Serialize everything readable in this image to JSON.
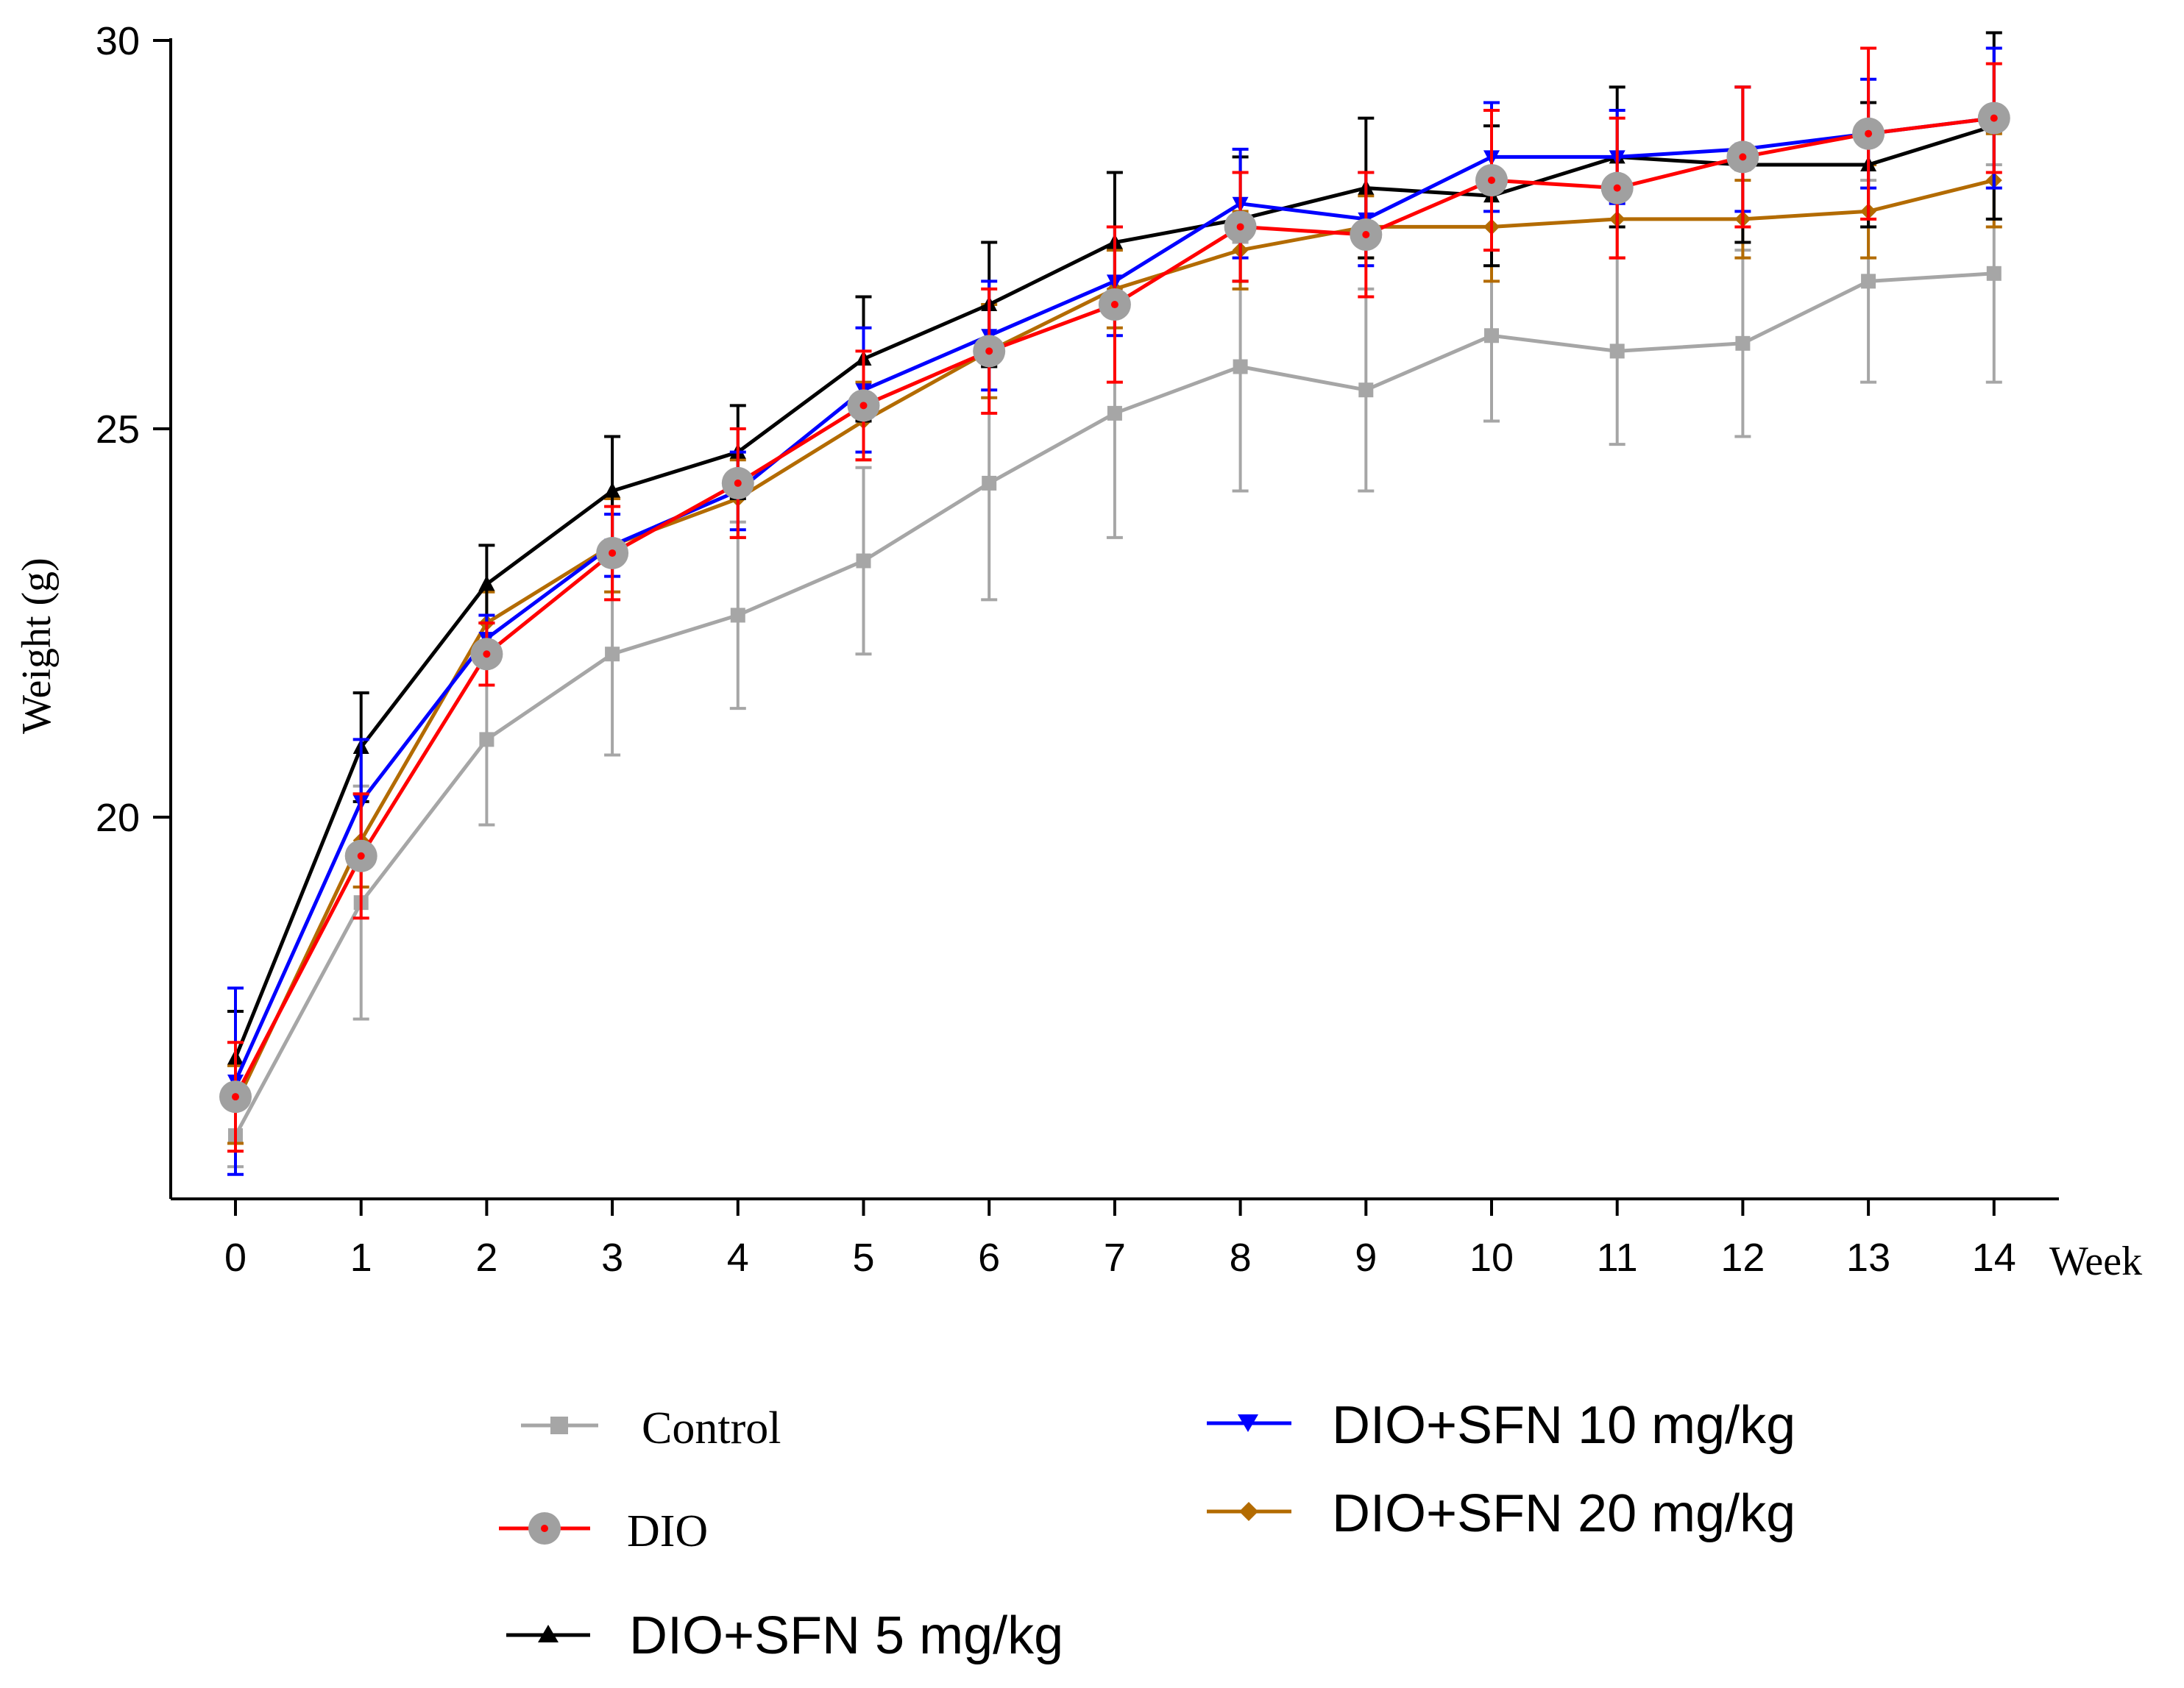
{
  "chart_data": {
    "type": "line",
    "title": "",
    "xlabel": "Week",
    "ylabel": "Weight (g)",
    "x": [
      0,
      1,
      2,
      3,
      4,
      5,
      6,
      7,
      8,
      9,
      10,
      11,
      12,
      13,
      14
    ],
    "x_tick_labels": [
      "0",
      "1",
      "2",
      "3",
      "4",
      "5",
      "6",
      "7",
      "8",
      "9",
      "10",
      "11",
      "12",
      "13",
      "14"
    ],
    "y_ticks": [
      20,
      25,
      30
    ],
    "y_tick_labels": [
      "20",
      "25",
      "30"
    ],
    "ylim": [
      15.1,
      30
    ],
    "xlim": [
      -0.5,
      14.5
    ],
    "error_bars": "upper and lower, one SD shown as capped vertical bars",
    "series": [
      {
        "name": "Control",
        "color": "#a6a6a6",
        "marker": "square",
        "values": [
          15.9,
          18.9,
          21.0,
          22.1,
          22.6,
          23.3,
          24.3,
          25.2,
          25.8,
          25.5,
          26.2,
          26.0,
          26.1,
          26.9,
          27.0
        ],
        "errors": [
          0.4,
          1.5,
          1.1,
          1.3,
          1.2,
          1.2,
          1.5,
          1.6,
          1.6,
          1.3,
          1.1,
          1.2,
          1.2,
          1.3,
          1.4
        ]
      },
      {
        "name": "DIO",
        "color": "#ff0000",
        "marker": "grey-circle-red-dot",
        "values": [
          16.4,
          19.5,
          22.1,
          23.4,
          24.3,
          25.3,
          26.0,
          26.6,
          27.6,
          27.5,
          28.2,
          28.1,
          28.5,
          28.8,
          29.0
        ],
        "errors": [
          0.7,
          0.8,
          0.4,
          0.6,
          0.7,
          0.7,
          0.8,
          1.0,
          0.7,
          0.8,
          0.9,
          0.9,
          0.9,
          1.1,
          0.7
        ]
      },
      {
        "name": "DIO+SFN 5 mg/kg",
        "color": "#000000",
        "marker": "triangle-up",
        "values": [
          16.9,
          20.9,
          23.0,
          24.2,
          24.7,
          25.9,
          26.6,
          27.4,
          27.7,
          28.1,
          28.0,
          28.5,
          28.4,
          28.4,
          28.9
        ],
        "errors": [
          0.6,
          0.7,
          0.5,
          0.7,
          0.6,
          0.8,
          0.8,
          0.9,
          0.8,
          0.9,
          0.9,
          0.9,
          1.0,
          0.8,
          1.2
        ]
      },
      {
        "name": "DIO+SFN 10 mg/kg",
        "color": "#0000ff",
        "marker": "triangle-down",
        "values": [
          16.6,
          20.2,
          22.3,
          23.5,
          24.2,
          25.5,
          26.2,
          26.9,
          27.9,
          27.7,
          28.5,
          28.5,
          28.6,
          28.8,
          29.0
        ],
        "errors": [
          1.2,
          0.8,
          0.3,
          0.4,
          0.5,
          0.8,
          0.7,
          0.7,
          0.7,
          0.6,
          0.7,
          0.6,
          0.8,
          0.7,
          0.9
        ]
      },
      {
        "name": "DIO+SFN 20 mg/kg",
        "color": "#b36b00",
        "marker": "diamond",
        "values": [
          16.3,
          19.7,
          22.5,
          23.5,
          24.1,
          25.1,
          26.0,
          26.8,
          27.3,
          27.6,
          27.6,
          27.7,
          27.7,
          27.8,
          28.2
        ],
        "errors": [
          0.5,
          0.6,
          0.4,
          0.6,
          0.5,
          0.5,
          0.6,
          0.5,
          0.5,
          0.4,
          0.7,
          0.5,
          0.5,
          0.6,
          0.6
        ]
      }
    ],
    "legend": {
      "placement": "bottom",
      "entries": [
        "Control",
        "DIO",
        "DIO+SFN 5 mg/kg",
        "DIO+SFN 10 mg/kg",
        "DIO+SFN 20 mg/kg"
      ]
    }
  }
}
